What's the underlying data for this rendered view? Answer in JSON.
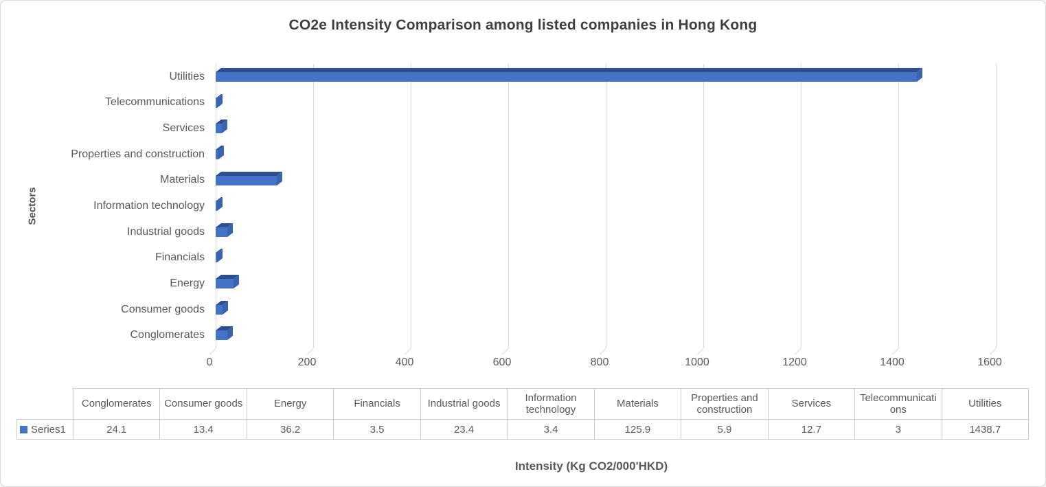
{
  "chart": {
    "title": "CO2e Intensity Comparison among listed companies in Hong Kong",
    "y_axis_label": "Sectors",
    "x_axis_title": "Intensity (Kg CO2/000'HKD)"
  },
  "chart_data": {
    "type": "bar",
    "orientation": "horizontal",
    "style": "3d",
    "title": "CO2e Intensity Comparison among listed companies in Hong Kong",
    "xlabel": "Intensity (Kg CO2/000'HKD)",
    "ylabel": "Sectors",
    "categories": [
      "Conglomerates",
      "Consumer goods",
      "Energy",
      "Financials",
      "Industrial goods",
      "Information technology",
      "Materials",
      "Properties and construction",
      "Services",
      "Telecommunications",
      "Utilities"
    ],
    "series": [
      {
        "name": "Series1",
        "values": [
          24.1,
          13.4,
          36.2,
          3.5,
          23.4,
          3.4,
          125.9,
          5.9,
          12.7,
          3,
          1438.7
        ]
      }
    ],
    "axis_order_top_to_bottom": [
      "Utilities",
      "Telecommunications",
      "Services",
      "Properties and construction",
      "Materials",
      "Information technology",
      "Industrial goods",
      "Financials",
      "Energy",
      "Consumer goods",
      "Conglomerates"
    ],
    "x_ticks": [
      0,
      200,
      400,
      600,
      800,
      1000,
      1200,
      1400,
      1600
    ],
    "xlim": [
      0,
      1600
    ],
    "grid": true,
    "legend_position": "data-table-left",
    "data_table_shown": true,
    "colors": {
      "bar_face": "#4472c4",
      "bar_top": "#2d4f91",
      "bar_side": "#3a63ad",
      "gridline": "#d9d9d9",
      "axis_text": "#595959",
      "title_text": "#3f3f3f",
      "table_border": "#cbcbcb"
    }
  },
  "data_table": {
    "legend_label": "Series1",
    "legend_marker_color": "#4472c4"
  }
}
